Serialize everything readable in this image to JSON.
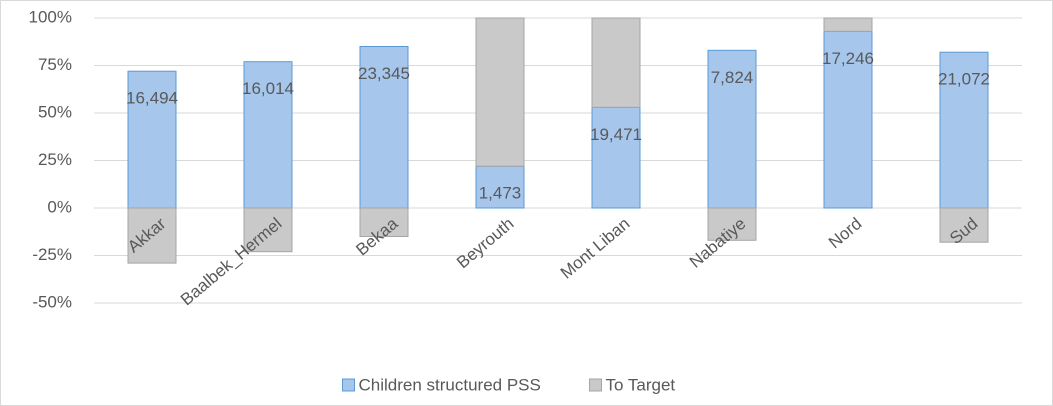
{
  "chart_data": {
    "type": "stacked_bar",
    "categories": [
      "Akkar",
      "Baalbek_Hermel",
      "Bekaa",
      "Beyrouth",
      "Mont Liban",
      "Nabatiye",
      "Nord",
      "Sud"
    ],
    "series": [
      {
        "name": "Children structured PSS",
        "color": "#a6c6ec",
        "stroke": "#5b9bd5",
        "values": [
          72,
          77,
          85,
          22,
          53,
          83,
          93,
          82
        ],
        "labels": [
          "16,494",
          "16,014",
          "23,345",
          "1,473",
          "19,471",
          "7,824",
          "17,246",
          "21,072"
        ]
      },
      {
        "name": "To Target",
        "color": "#c9c9c9",
        "stroke": "#a5a5a5",
        "values": [
          -29,
          -23,
          -15,
          78,
          47,
          -17,
          7,
          -18
        ]
      }
    ],
    "ylim": [
      -50,
      100
    ],
    "yticks": [
      {
        "value": -50,
        "label": "-50%"
      },
      {
        "value": -25,
        "label": "-25%"
      },
      {
        "value": 0,
        "label": "0%"
      },
      {
        "value": 25,
        "label": "25%"
      },
      {
        "value": 50,
        "label": "50%"
      },
      {
        "value": 75,
        "label": "75%"
      },
      {
        "value": 100,
        "label": "100%"
      }
    ],
    "grid": true,
    "legend": "bottom"
  }
}
